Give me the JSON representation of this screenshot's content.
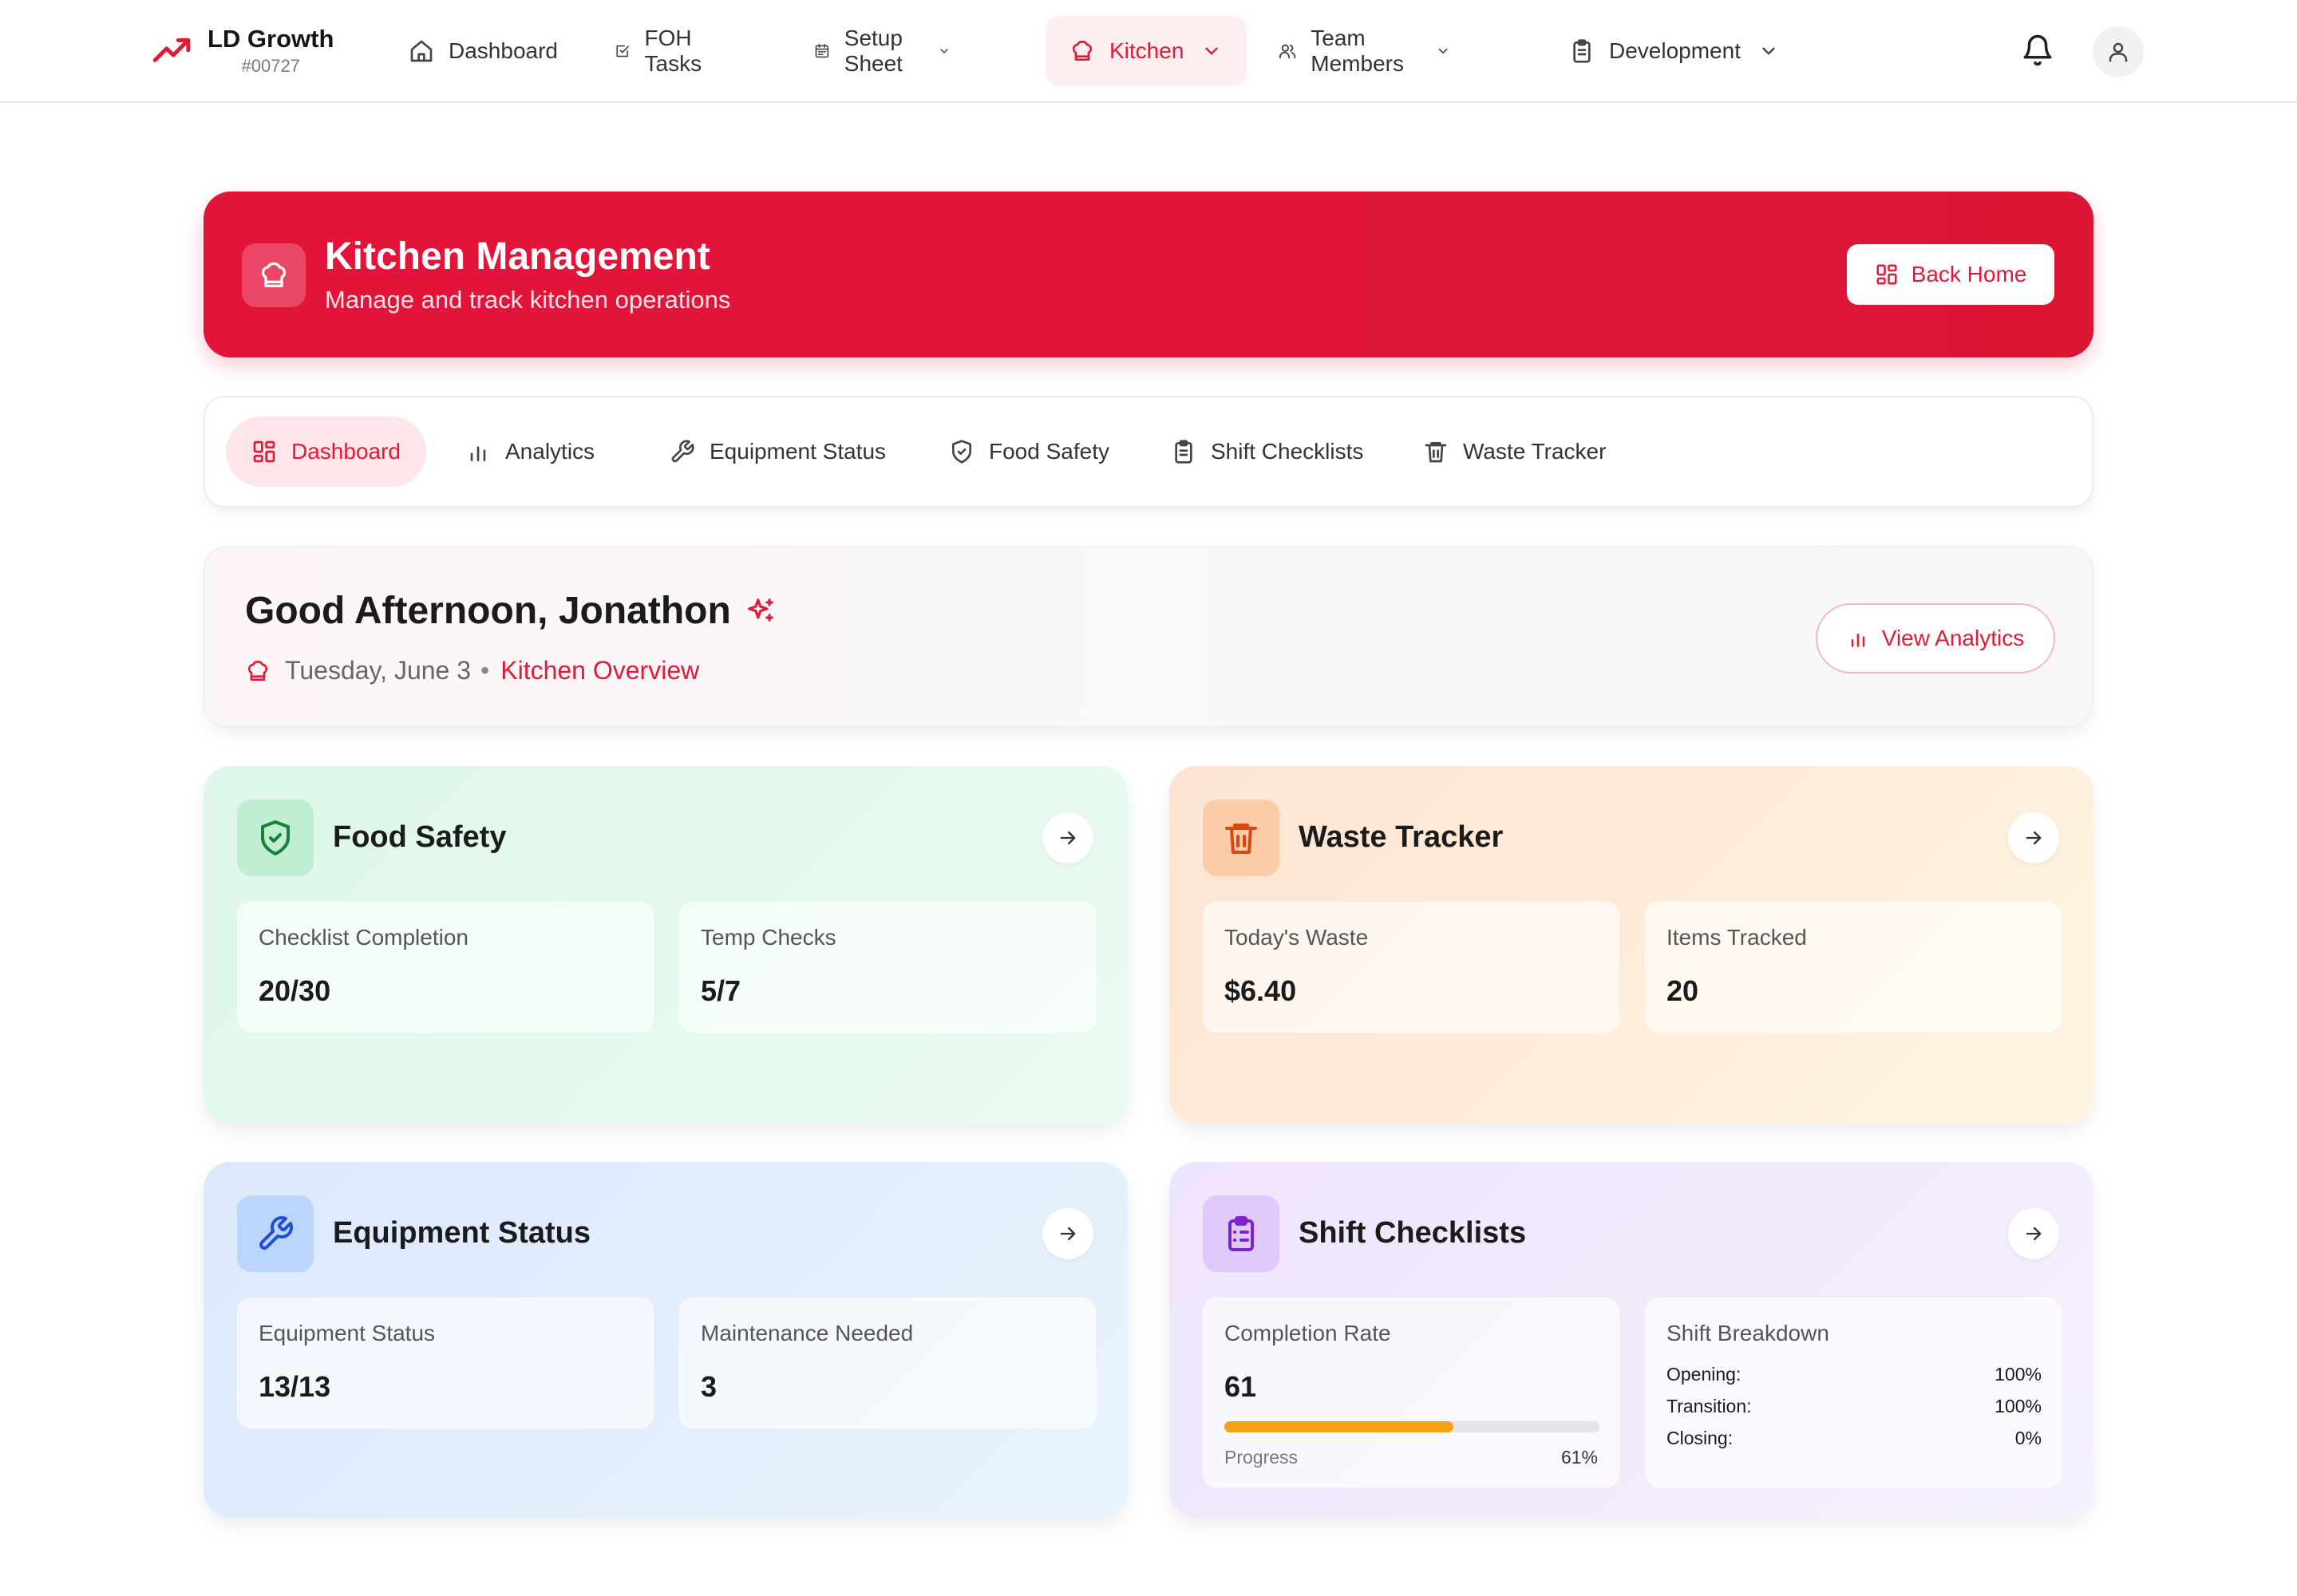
{
  "brand": {
    "name": "LD Growth",
    "id": "#00727"
  },
  "nav": [
    {
      "label": "Dashboard",
      "icon": "home-icon"
    },
    {
      "label": "FOH Tasks",
      "icon": "checkbox-icon"
    },
    {
      "label": "Setup Sheet",
      "icon": "calendar-icon",
      "dropdown": true
    },
    {
      "label": "Kitchen",
      "icon": "chef-hat-icon",
      "dropdown": true,
      "active": true
    },
    {
      "label": "Team Members",
      "icon": "users-icon",
      "dropdown": true
    },
    {
      "label": "Development",
      "icon": "clipboard-icon",
      "dropdown": true
    }
  ],
  "hero": {
    "title": "Kitchen Management",
    "subtitle": "Manage and track kitchen operations",
    "button": "Back Home"
  },
  "tabs": [
    {
      "label": "Dashboard",
      "icon": "grid-icon",
      "active": true
    },
    {
      "label": "Analytics",
      "icon": "bar-chart-icon"
    },
    {
      "label": "Equipment Status",
      "icon": "wrench-icon"
    },
    {
      "label": "Food Safety",
      "icon": "shield-icon"
    },
    {
      "label": "Shift Checklists",
      "icon": "clipboard-icon"
    },
    {
      "label": "Waste Tracker",
      "icon": "trash-icon"
    }
  ],
  "greeting": {
    "title": "Good Afternoon, Jonathon",
    "date": "Tuesday, June 3",
    "separator": "•",
    "link": "Kitchen Overview",
    "button": "View Analytics"
  },
  "cards": {
    "food_safety": {
      "title": "Food Safety",
      "stats": [
        {
          "label": "Checklist Completion",
          "value": "20/30"
        },
        {
          "label": "Temp Checks",
          "value": "5/7"
        }
      ]
    },
    "waste_tracker": {
      "title": "Waste Tracker",
      "stats": [
        {
          "label": "Today's Waste",
          "value": "$6.40"
        },
        {
          "label": "Items Tracked",
          "value": "20"
        }
      ]
    },
    "equipment_status": {
      "title": "Equipment Status",
      "stats": [
        {
          "label": "Equipment Status",
          "value": "13/13"
        },
        {
          "label": "Maintenance Needed",
          "value": "3"
        }
      ]
    },
    "shift_checklists": {
      "title": "Shift Checklists",
      "completion": {
        "label": "Completion Rate",
        "value": "61",
        "progress_label": "Progress",
        "progress_pct": "61%",
        "progress": 0.61
      },
      "breakdown": {
        "label": "Shift Breakdown",
        "rows": [
          {
            "name": "Opening:",
            "value": "100%"
          },
          {
            "name": "Transition:",
            "value": "100%"
          },
          {
            "name": "Closing:",
            "value": "0%"
          }
        ]
      }
    }
  },
  "colors": {
    "accent": "#e11a37",
    "progress": "#f5a315",
    "food_safety_icon": "#16803c",
    "waste_icon": "#d9480f",
    "equipment_icon": "#1e4fd8",
    "shift_icon": "#7e22ce"
  }
}
